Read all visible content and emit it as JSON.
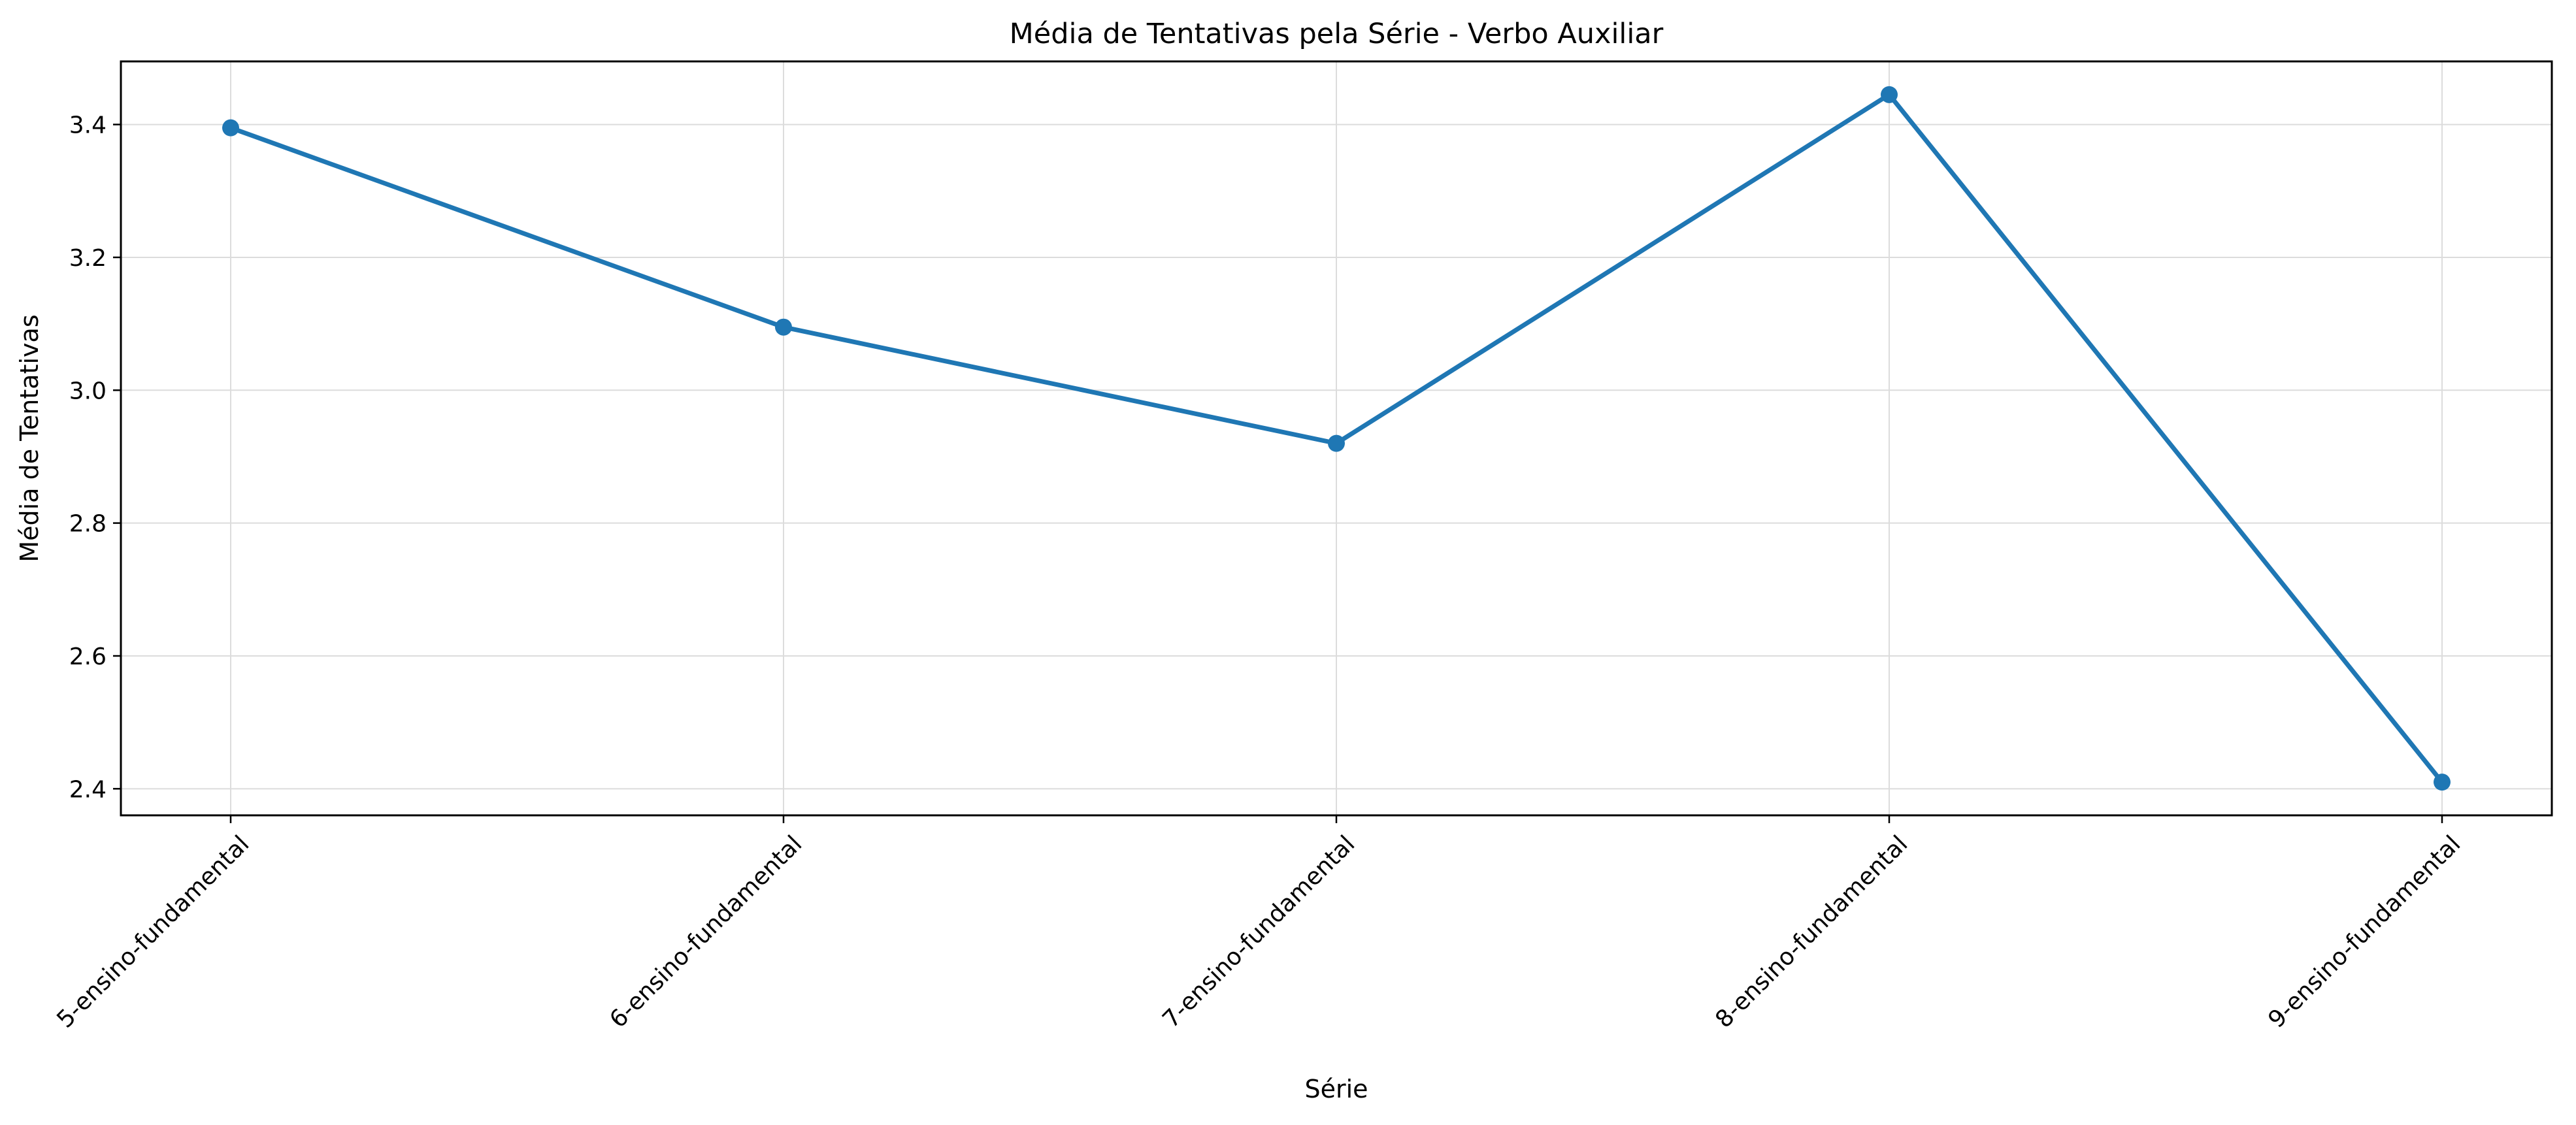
{
  "chart_data": {
    "type": "line",
    "title": "Média de Tentativas pela Série - Verbo Auxiliar",
    "xlabel": "Série",
    "ylabel": "Média de Tentativas",
    "categories": [
      "5-ensino-fundamental",
      "6-ensino-fundamental",
      "7-ensino-fundamental",
      "8-ensino-fundamental",
      "9-ensino-fundamental"
    ],
    "series": [
      {
        "values": [
          3.395,
          3.095,
          2.92,
          3.445,
          2.41
        ],
        "color": "#1f77b4"
      }
    ],
    "ylim": [
      2.36,
      3.495
    ],
    "yticks": [
      2.4,
      2.6,
      2.8,
      3.0,
      3.2,
      3.4
    ],
    "ytick_labels": [
      "2.4",
      "2.6",
      "2.8",
      "3.0",
      "3.2",
      "3.4"
    ],
    "xtick_rotation": 45,
    "grid": true,
    "legend": "none"
  }
}
